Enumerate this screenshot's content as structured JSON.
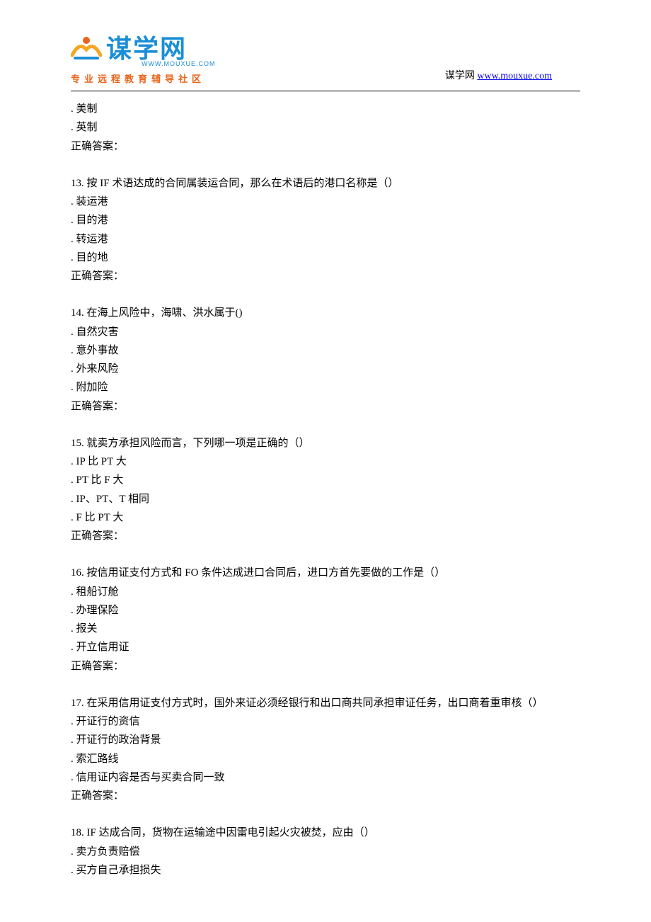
{
  "header": {
    "logo_cn": "谋学网",
    "logo_url_small": "WWW.MOUXUE.COM",
    "tagline": "专业远程教育辅导社区",
    "right_prefix": "谋学网 ",
    "right_link_text": "www.mouxue.com",
    "right_link_href": "http://www.mouxue.com"
  },
  "styles": {
    "accent_blue": "#1a8ed6",
    "accent_orange": "#e8641b",
    "link_color": "#0000ee",
    "text_color": "#000000",
    "bg_color": "#ffffff",
    "body_font_size": 15,
    "line_height": 1.75
  },
  "fragment": {
    "options": [
      "美制",
      "英制"
    ],
    "answer_label": "正确答案："
  },
  "questions": [
    {
      "num": "13",
      "text": "按 IF 术语达成的合同属装运合同，那么在术语后的港口名称是（）",
      "options": [
        "装运港",
        "目的港",
        "转运港",
        "目的地"
      ],
      "answer_label": "正确答案："
    },
    {
      "num": "14",
      "text": "在海上风险中，海啸、洪水属于()",
      "options": [
        "自然灾害",
        "意外事故",
        "外来风险",
        "附加险"
      ],
      "answer_label": "正确答案："
    },
    {
      "num": "15",
      "text": "就卖方承担风险而言，下列哪一项是正确的（）",
      "options": [
        "IP 比 PT 大",
        "PT 比 F 大",
        "IP、PT、T 相同",
        "F 比 PT 大"
      ],
      "answer_label": "正确答案："
    },
    {
      "num": "16",
      "text": "按信用证支付方式和 FO 条件达成进口合同后，进口方首先要做的工作是（）",
      "options": [
        "租船订舱",
        "办理保险",
        "报关",
        "开立信用证"
      ],
      "answer_label": "正确答案："
    },
    {
      "num": "17",
      "text": "在采用信用证支付方式时，国外来证必须经银行和出口商共同承担审证任务，出口商着重审核（）",
      "options": [
        "开证行的资信",
        "开证行的政治背景",
        "索汇路线",
        "信用证内容是否与买卖合同一致"
      ],
      "answer_label": "正确答案："
    },
    {
      "num": "18",
      "text": "IF 达成合同，货物在运输途中因雷电引起火灾被焚，应由（）",
      "options": [
        "卖方负责赔偿",
        "买方自己承担损失"
      ],
      "answer_label": null
    }
  ]
}
